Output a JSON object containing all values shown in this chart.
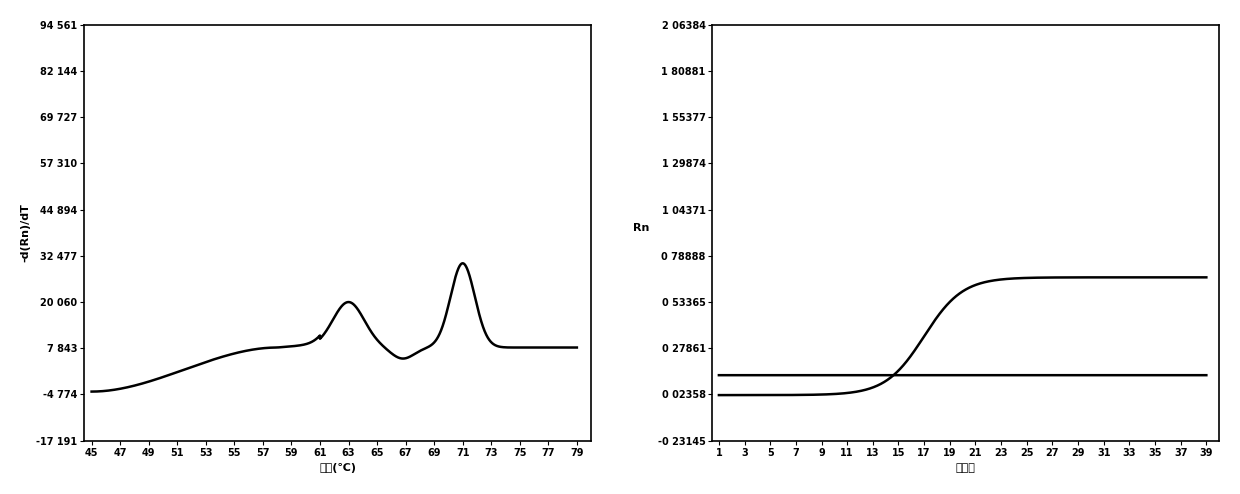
{
  "left_ytick_labels": [
    "94 561",
    "82 144",
    "69 727",
    "57 310",
    "44 894",
    "32 477",
    "20 060",
    "7 843",
    "-4 774",
    "-17 191"
  ],
  "left_ytick_values": [
    94561,
    82144,
    69727,
    57310,
    44894,
    32477,
    20060,
    7843,
    -4774,
    -17191
  ],
  "left_ylabel": "-d(Rn)/dT",
  "left_xlabel": "温度(℃)",
  "left_xticks": [
    45,
    47,
    49,
    51,
    53,
    55,
    57,
    59,
    61,
    63,
    65,
    67,
    69,
    71,
    73,
    75,
    77,
    79
  ],
  "left_xlim": [
    44.5,
    80
  ],
  "left_ylim": [
    -17191,
    94561
  ],
  "right_ytick_labels": [
    "2 06384",
    "1 80881",
    "1 55377",
    "1 29874",
    "1 04371",
    "0 78888",
    "0 53365",
    "0 27861",
    "0 02358",
    "-0 23145"
  ],
  "right_ytick_values": [
    2.06384,
    1.80881,
    1.55377,
    1.29874,
    1.04371,
    0.78888,
    0.53365,
    0.27861,
    0.02358,
    -0.23145
  ],
  "right_ylabel": "Rn",
  "right_xlabel": "循环数",
  "right_xticks": [
    1,
    3,
    5,
    7,
    9,
    11,
    13,
    15,
    17,
    19,
    21,
    23,
    25,
    27,
    29,
    31,
    33,
    35,
    37,
    39
  ],
  "right_xlim": [
    0.5,
    40
  ],
  "right_ylim": [
    -0.23145,
    2.06384
  ],
  "line_color": "#000000",
  "background_color": "#ffffff",
  "font_size": 7.0
}
